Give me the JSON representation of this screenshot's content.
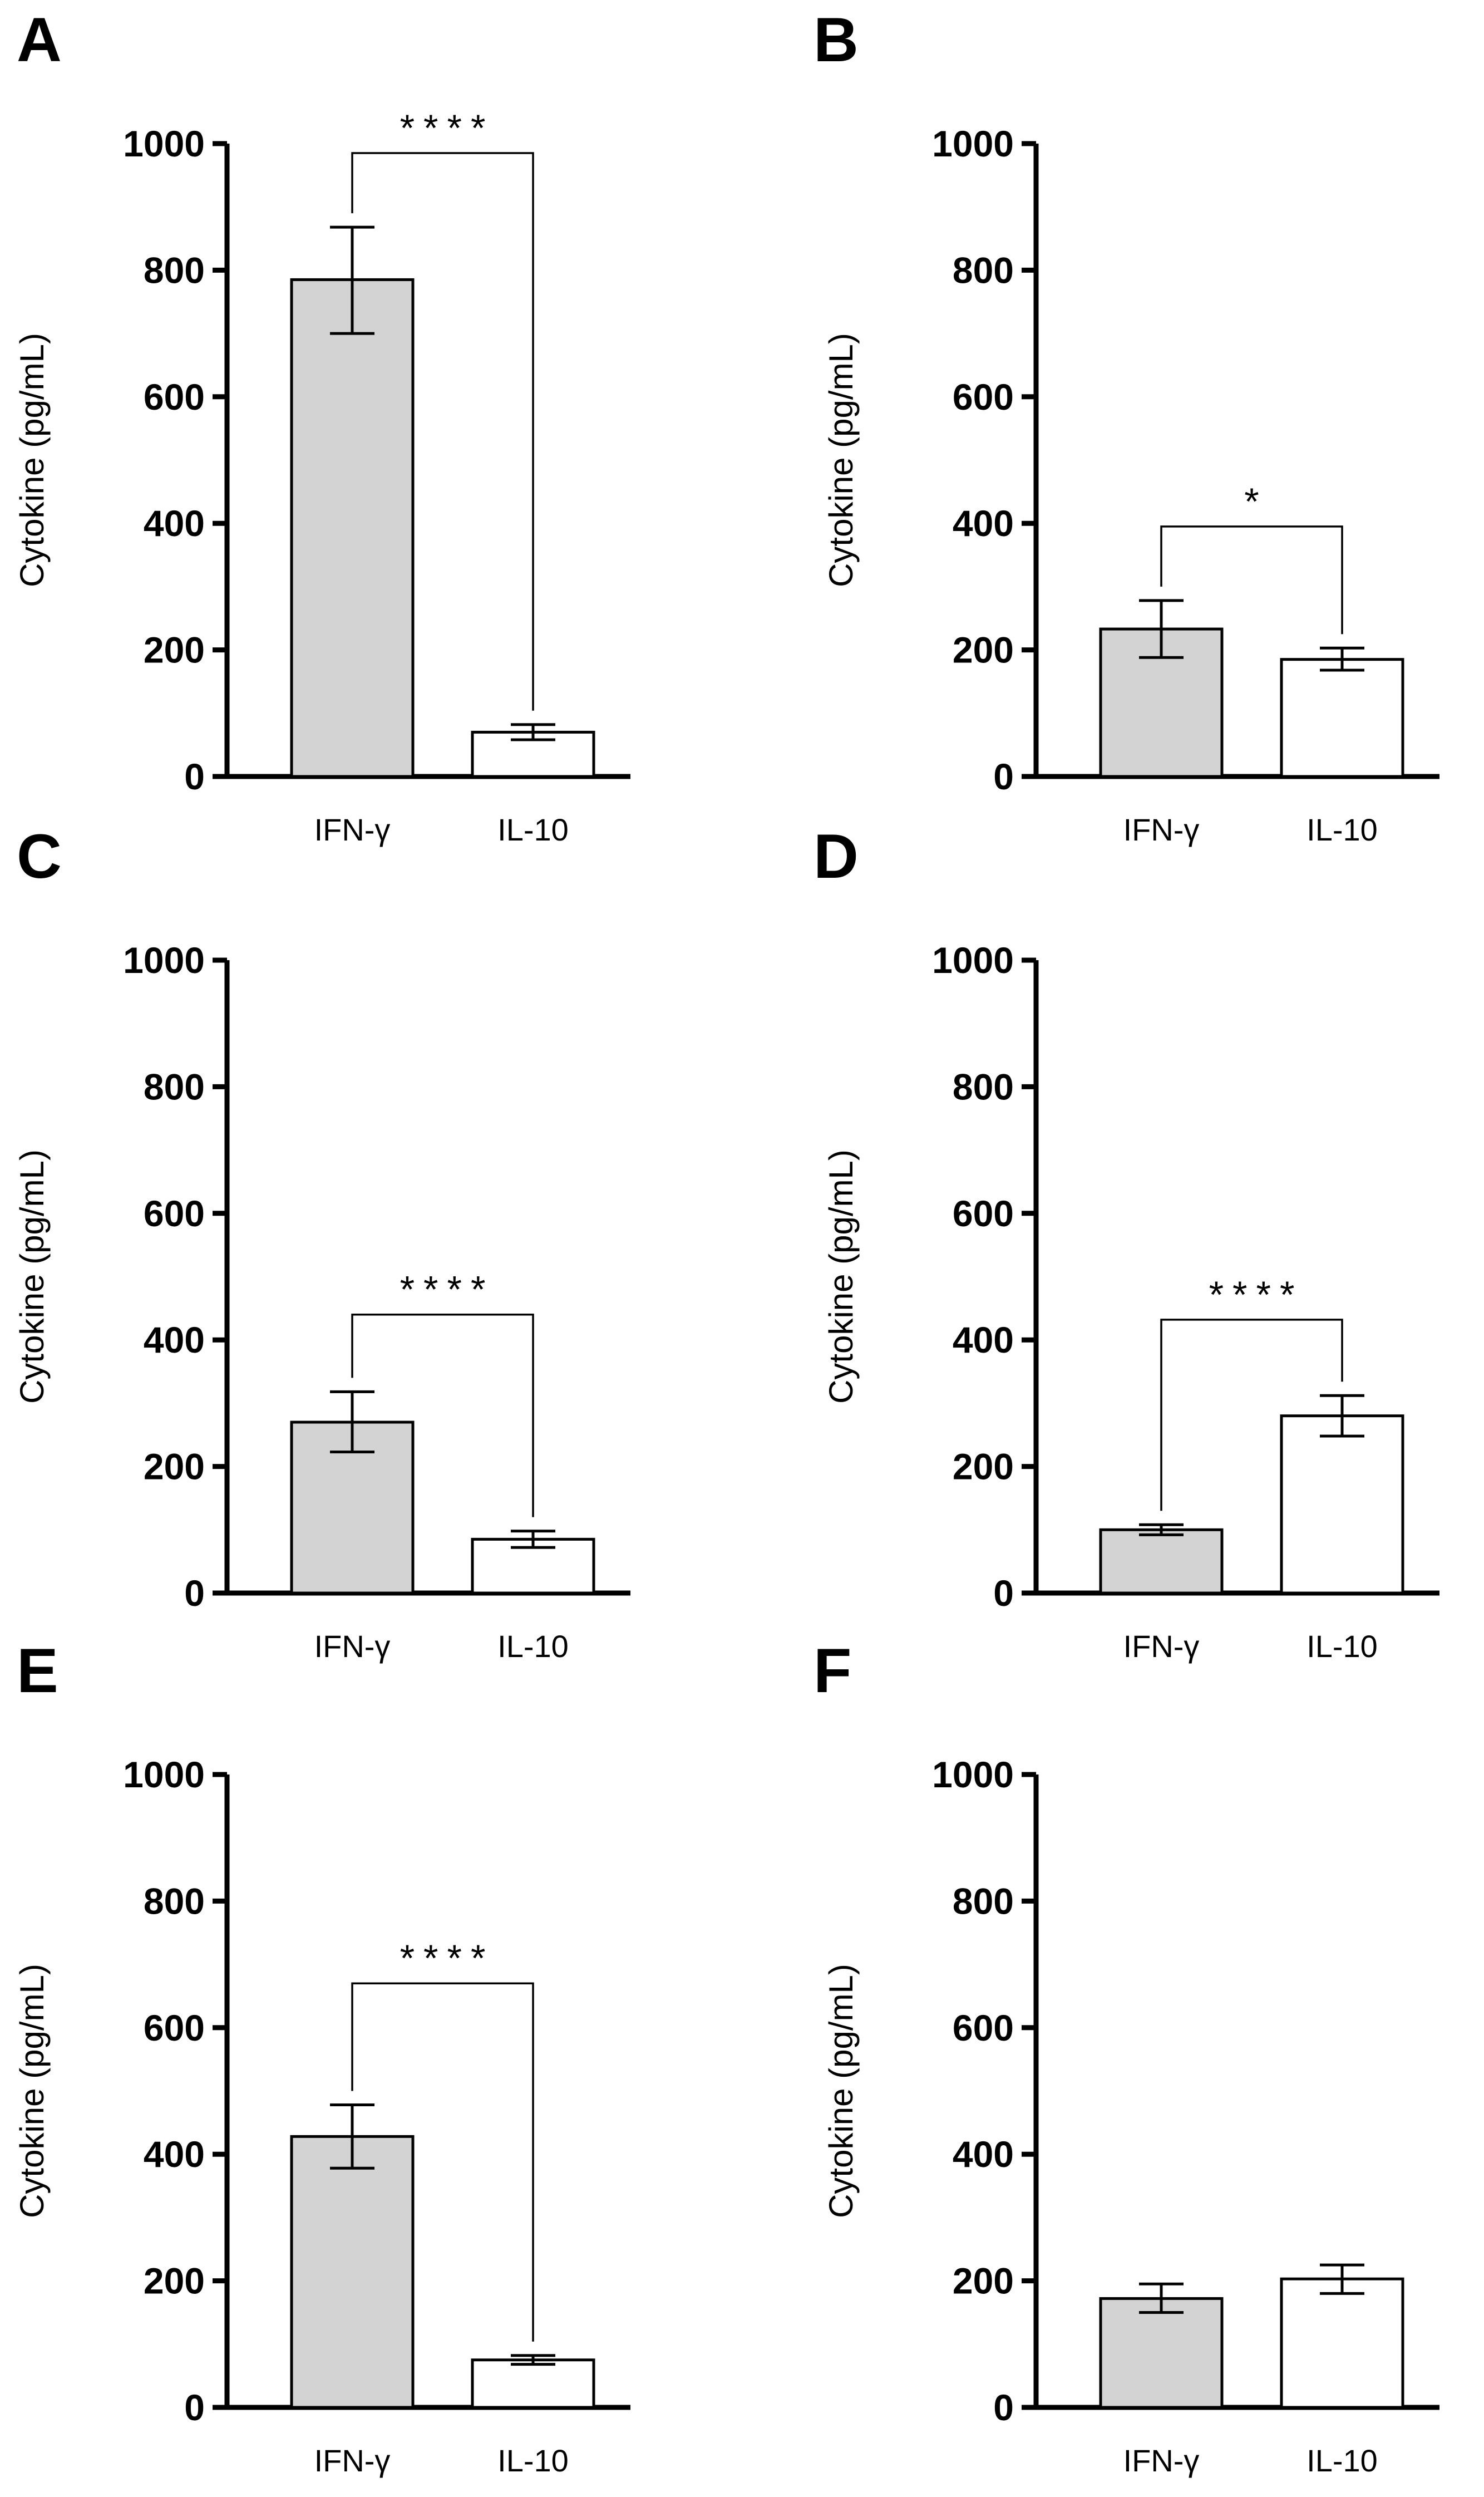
{
  "chart_data": [
    {
      "panel": "A",
      "type": "bar",
      "categories": [
        "IFN-γ",
        "IL-10"
      ],
      "values": [
        785,
        70
      ],
      "errors": [
        [
          700,
          868
        ],
        [
          58,
          82
        ]
      ],
      "bar_colors": [
        "#d3d3d3",
        "#ffffff"
      ],
      "ylabel": "Cytokine (pg/mL)",
      "ylim": [
        0,
        1000
      ],
      "yticks": [
        "0",
        "200",
        "400",
        "600",
        "800",
        "1000"
      ],
      "significance": {
        "label": "****",
        "bracket_y": 985
      }
    },
    {
      "panel": "B",
      "type": "bar",
      "categories": [
        "IFN-γ",
        "IL-10"
      ],
      "values": [
        233,
        185
      ],
      "errors": [
        [
          188,
          278
        ],
        [
          168,
          203
        ]
      ],
      "bar_colors": [
        "#d3d3d3",
        "#ffffff"
      ],
      "ylabel": "Cytokine (pg/mL)",
      "ylim": [
        0,
        1000
      ],
      "yticks": [
        "0",
        "200",
        "400",
        "600",
        "800",
        "1000"
      ],
      "significance": {
        "label": "*",
        "bracket_y": 395
      }
    },
    {
      "panel": "C",
      "type": "bar",
      "categories": [
        "IFN-γ",
        "IL-10"
      ],
      "values": [
        270,
        85
      ],
      "errors": [
        [
          223,
          318
        ],
        [
          72,
          98
        ]
      ],
      "bar_colors": [
        "#d3d3d3",
        "#ffffff"
      ],
      "ylabel": "Cytokine (pg/mL)",
      "ylim": [
        0,
        1000
      ],
      "yticks": [
        "0",
        "200",
        "400",
        "600",
        "800",
        "1000"
      ],
      "significance": {
        "label": "****",
        "bracket_y": 440
      }
    },
    {
      "panel": "D",
      "type": "bar",
      "categories": [
        "IFN-γ",
        "IL-10"
      ],
      "values": [
        100,
        280
      ],
      "errors": [
        [
          92,
          108
        ],
        [
          248,
          312
        ]
      ],
      "bar_colors": [
        "#d3d3d3",
        "#ffffff"
      ],
      "ylabel": "Cytokine (pg/mL)",
      "ylim": [
        0,
        1000
      ],
      "yticks": [
        "0",
        "200",
        "400",
        "600",
        "800",
        "1000"
      ],
      "significance": {
        "label": "****",
        "bracket_y": 432
      }
    },
    {
      "panel": "E",
      "type": "bar",
      "categories": [
        "IFN-γ",
        "IL-10"
      ],
      "values": [
        428,
        75
      ],
      "errors": [
        [
          378,
          478
        ],
        [
          68,
          82
        ]
      ],
      "bar_colors": [
        "#d3d3d3",
        "#ffffff"
      ],
      "ylabel": "Cytokine (pg/mL)",
      "ylim": [
        0,
        1000
      ],
      "yticks": [
        "0",
        "200",
        "400",
        "600",
        "800",
        "1000"
      ],
      "significance": {
        "label": "****",
        "bracket_y": 670
      }
    },
    {
      "panel": "F",
      "type": "bar",
      "categories": [
        "IFN-γ",
        "IL-10"
      ],
      "values": [
        172,
        203
      ],
      "errors": [
        [
          150,
          195
        ],
        [
          180,
          225
        ]
      ],
      "bar_colors": [
        "#d3d3d3",
        "#ffffff"
      ],
      "ylabel": "Cytokine (pg/mL)",
      "ylim": [
        0,
        1000
      ],
      "yticks": [
        "0",
        "200",
        "400",
        "600",
        "800",
        "1000"
      ],
      "significance": null
    }
  ]
}
